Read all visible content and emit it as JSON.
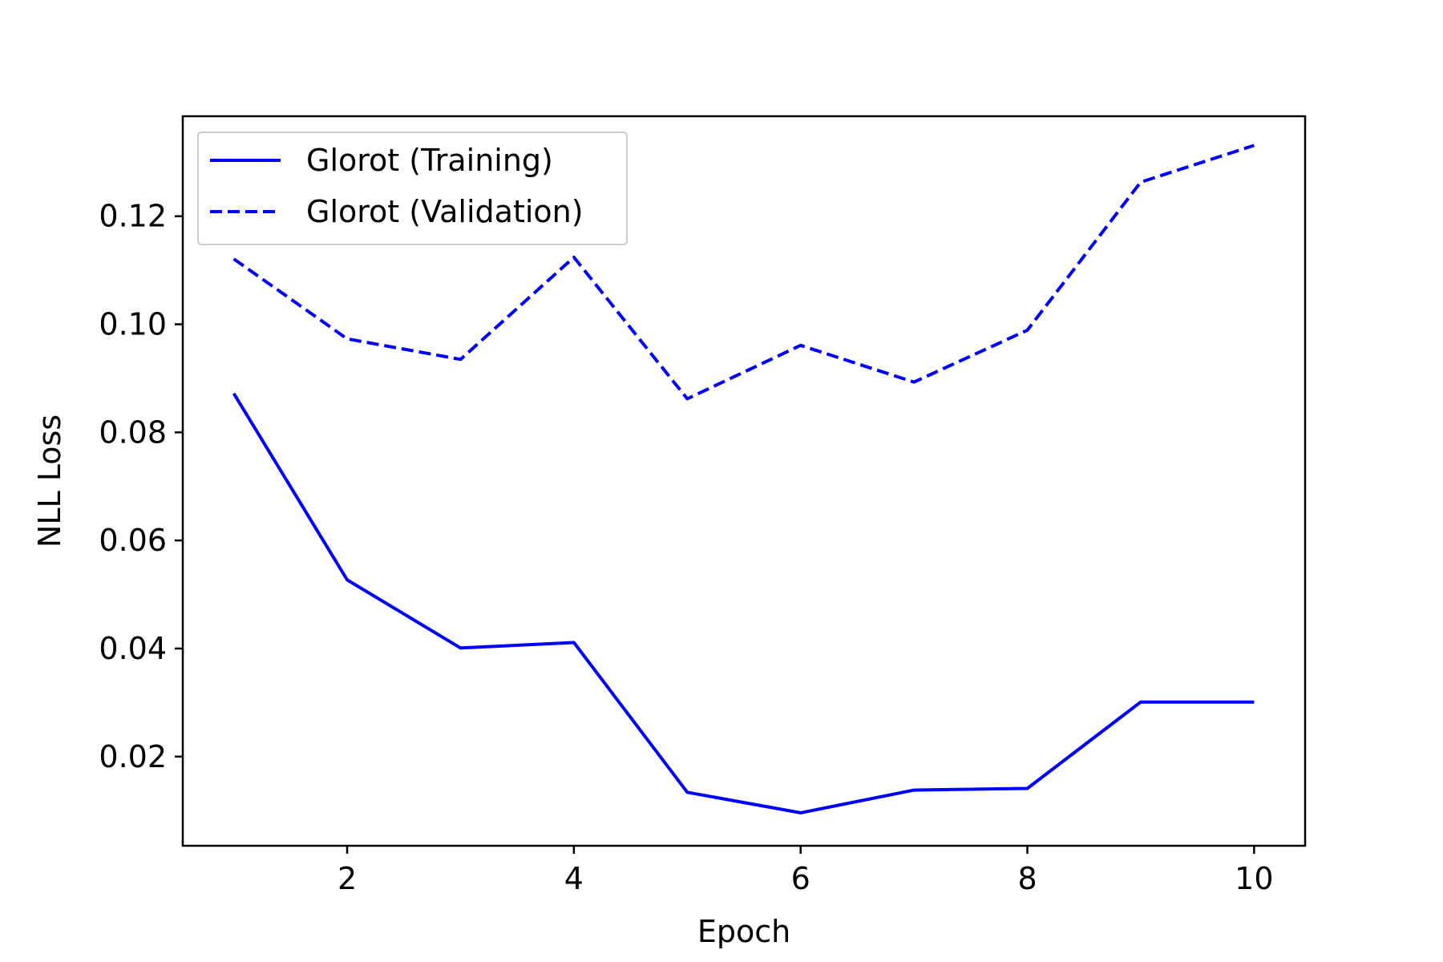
{
  "chart_data": {
    "type": "line",
    "title": "",
    "xlabel": "Epoch",
    "ylabel": "NLL Loss",
    "xlim": [
      0.55,
      10.45
    ],
    "ylim": [
      0.0035,
      0.1385
    ],
    "xticks": [
      2,
      4,
      6,
      8,
      10
    ],
    "xtick_labels": [
      "2",
      "4",
      "6",
      "8",
      "10"
    ],
    "yticks": [
      0.02,
      0.04,
      0.06,
      0.08,
      0.1,
      0.12
    ],
    "ytick_labels": [
      "0.02",
      "0.04",
      "0.06",
      "0.08",
      "0.10",
      "0.12"
    ],
    "grid": false,
    "legend_position": "upper left",
    "x": [
      1,
      2,
      3,
      4,
      5,
      6,
      7,
      8,
      9,
      10
    ],
    "series": [
      {
        "name": "Glorot (Training)",
        "color": "#0000ff",
        "linestyle": "solid",
        "values": [
          0.0872,
          0.0527,
          0.0401,
          0.0411,
          0.0134,
          0.0096,
          0.0138,
          0.0141,
          0.0301,
          0.0301
        ]
      },
      {
        "name": "Glorot (Validation)",
        "color": "#0000ff",
        "linestyle": "dashed",
        "values": [
          0.1121,
          0.0973,
          0.0935,
          0.1124,
          0.0862,
          0.0961,
          0.0893,
          0.0989,
          0.1263,
          0.1331
        ]
      }
    ]
  }
}
